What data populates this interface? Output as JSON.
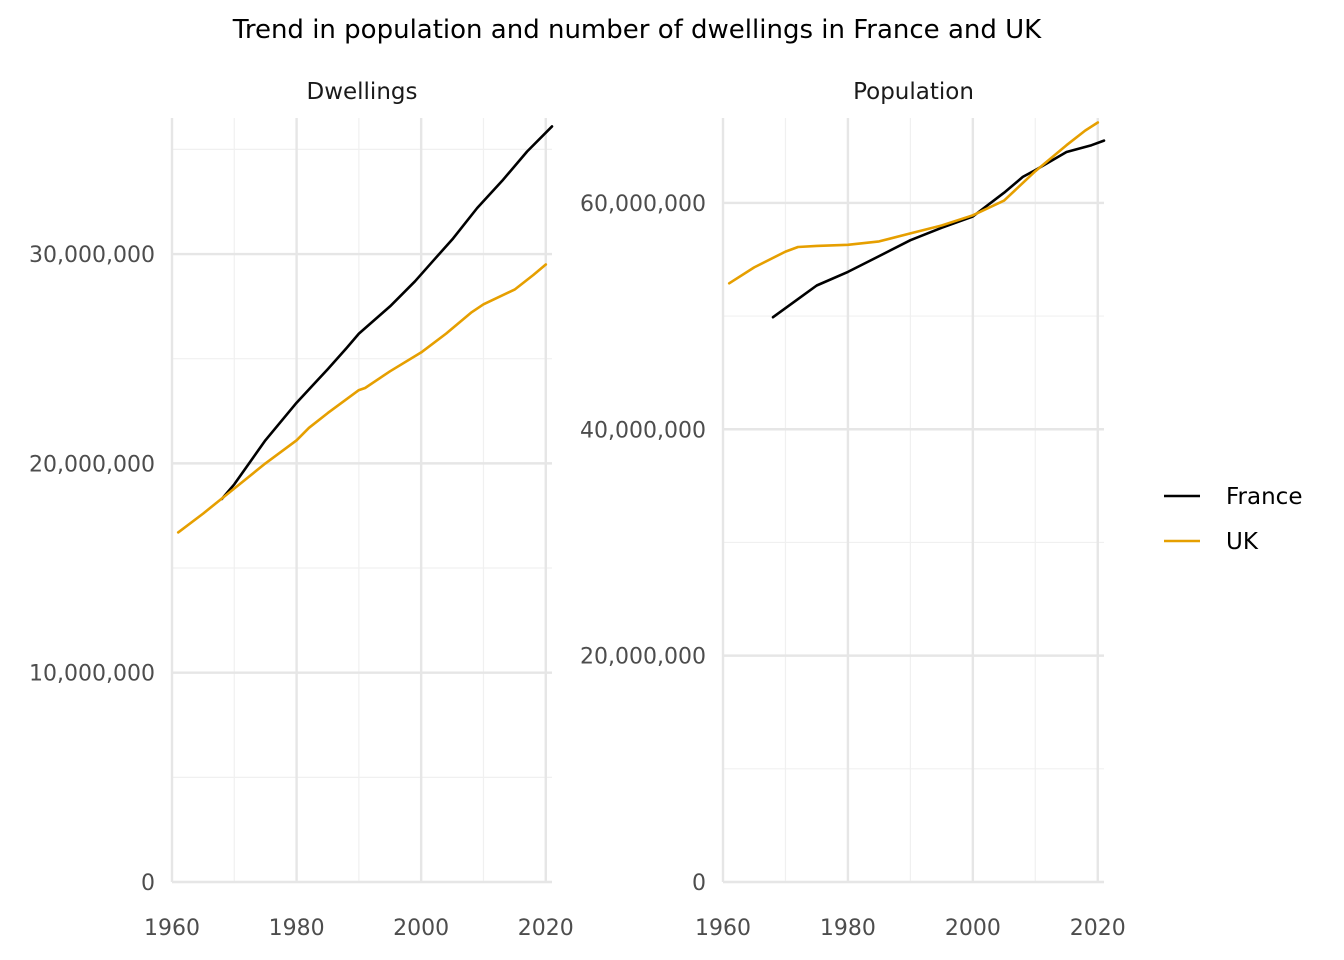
{
  "chart_data": {
    "type": "line",
    "title": "Trend in population and number of dwellings in France and UK",
    "legend": {
      "placement": "right",
      "entries": [
        {
          "name": "France",
          "color": "#000000"
        },
        {
          "name": "UK",
          "color": "#E69F00"
        }
      ]
    },
    "panels": [
      {
        "title": "Dwellings",
        "xlim": [
          1960,
          2021
        ],
        "ylim": [
          0,
          36500000
        ],
        "x_ticks": [
          1960,
          1980,
          2000,
          2020
        ],
        "x_tick_labels": [
          "1960",
          "1980",
          "2000",
          "2020"
        ],
        "y_ticks": [
          0,
          10000000,
          20000000,
          30000000
        ],
        "y_tick_labels": [
          "0",
          "10,000,000",
          "20,000,000",
          "30,000,000"
        ],
        "series": [
          {
            "name": "France",
            "color": "#000000",
            "x": [
              1968,
              1970,
              1975,
              1980,
              1985,
              1988,
              1990,
              1995,
              1999,
              2002,
              2005,
              2009,
              2013,
              2017,
              2021
            ],
            "y": [
              18300000,
              19000000,
              21100000,
              22900000,
              24500000,
              25500000,
              26200000,
              27500000,
              28700000,
              29700000,
              30700000,
              32200000,
              33500000,
              34900000,
              36100000
            ]
          },
          {
            "name": "UK",
            "color": "#E69F00",
            "x": [
              1961,
              1965,
              1970,
              1975,
              1980,
              1982,
              1985,
              1990,
              1991,
              1995,
              2000,
              2004,
              2008,
              2010,
              2015,
              2018,
              2020
            ],
            "y": [
              16700000,
              17600000,
              18800000,
              20000000,
              21100000,
              21700000,
              22400000,
              23500000,
              23600000,
              24400000,
              25300000,
              26200000,
              27200000,
              27600000,
              28300000,
              29000000,
              29500000
            ]
          }
        ]
      },
      {
        "title": "Population",
        "xlim": [
          1960,
          2021
        ],
        "ylim": [
          0,
          67500000
        ],
        "x_ticks": [
          1960,
          1980,
          2000,
          2020
        ],
        "x_tick_labels": [
          "1960",
          "1980",
          "2000",
          "2020"
        ],
        "y_ticks": [
          0,
          20000000,
          40000000,
          60000000
        ],
        "y_tick_labels": [
          "0",
          "20,000,000",
          "40,000,000",
          "60,000,000"
        ],
        "series": [
          {
            "name": "France",
            "color": "#000000",
            "x": [
              1968,
              1972,
              1975,
              1980,
              1985,
              1990,
              1995,
              2000,
              2005,
              2008,
              2010,
              2015,
              2019,
              2021
            ],
            "y": [
              49900000,
              51500000,
              52700000,
              53900000,
              55300000,
              56700000,
              57800000,
              58800000,
              60900000,
              62300000,
              62900000,
              64500000,
              65100000,
              65500000
            ]
          },
          {
            "name": "UK",
            "color": "#E69F00",
            "x": [
              1961,
              1965,
              1970,
              1972,
              1975,
              1980,
              1985,
              1990,
              1995,
              2000,
              2005,
              2010,
              2015,
              2018,
              2020
            ],
            "y": [
              52900000,
              54300000,
              55700000,
              56100000,
              56200000,
              56300000,
              56600000,
              57300000,
              58000000,
              58900000,
              60200000,
              62800000,
              65100000,
              66400000,
              67100000
            ]
          }
        ]
      }
    ]
  }
}
